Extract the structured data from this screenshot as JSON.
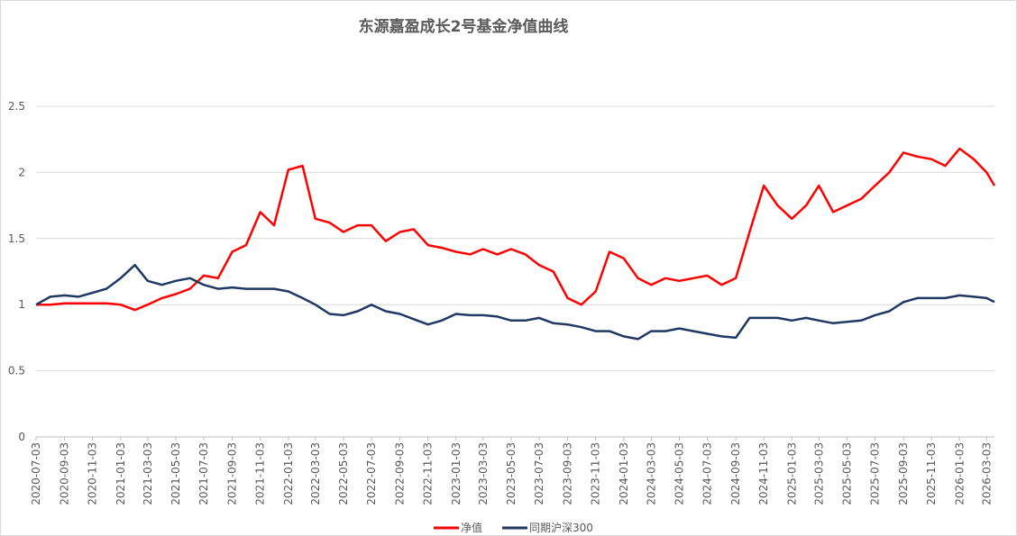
{
  "chart_data": {
    "type": "line",
    "title": "东源嘉盈成长2号基金净值曲线",
    "ylim": [
      0,
      2.5
    ],
    "y_ticks": [
      "0",
      "0.5",
      "1",
      "1.5",
      "2",
      "2.5"
    ],
    "x_tick_labels": [
      "2020-07-03",
      "2020-09-03",
      "2020-11-03",
      "2021-01-03",
      "2021-03-03",
      "2021-05-03",
      "2021-07-03",
      "2021-09-03",
      "2021-11-03",
      "2022-01-03",
      "2022-03-03",
      "2022-05-03",
      "2022-07-03",
      "2022-09-03",
      "2022-11-03",
      "2023-01-03",
      "2023-03-03",
      "2023-05-03",
      "2023-07-03",
      "2023-09-03",
      "2023-11-03",
      "2024-01-03",
      "2024-03-03",
      "2024-05-03",
      "2024-07-03",
      "2024-09-03",
      "2024-11-03",
      "2025-01-03",
      "2025-03-03",
      "2025-05-03",
      "2025-07-03",
      "2025-09-03",
      "2025-11-03",
      "2026-01-03",
      "2026-03-03"
    ],
    "grid": true,
    "legend_position": "bottom",
    "x": [
      "2020-07-03",
      "2020-08-03",
      "2020-09-03",
      "2020-10-03",
      "2020-11-03",
      "2020-12-03",
      "2021-01-03",
      "2021-02-03",
      "2021-03-03",
      "2021-04-03",
      "2021-05-03",
      "2021-06-03",
      "2021-07-03",
      "2021-08-03",
      "2021-09-03",
      "2021-10-03",
      "2021-11-03",
      "2021-12-03",
      "2022-01-03",
      "2022-02-03",
      "2022-03-03",
      "2022-04-03",
      "2022-05-03",
      "2022-06-03",
      "2022-07-03",
      "2022-08-03",
      "2022-09-03",
      "2022-10-03",
      "2022-11-03",
      "2022-12-03",
      "2023-01-03",
      "2023-02-03",
      "2023-03-03",
      "2023-04-03",
      "2023-05-03",
      "2023-06-03",
      "2023-07-03",
      "2023-08-03",
      "2023-09-03",
      "2023-10-03",
      "2023-11-03",
      "2023-12-03",
      "2024-01-03",
      "2024-02-03",
      "2024-03-03",
      "2024-04-03",
      "2024-05-03",
      "2024-06-03",
      "2024-07-03",
      "2024-08-03",
      "2024-09-03",
      "2024-10-03",
      "2024-11-03",
      "2024-12-03",
      "2025-01-03",
      "2025-02-03",
      "2025-03-03",
      "2025-04-03",
      "2025-05-03",
      "2025-06-03",
      "2025-07-03",
      "2025-08-03",
      "2025-09-03",
      "2025-10-03",
      "2025-11-03",
      "2025-12-03",
      "2026-01-03",
      "2026-02-03",
      "2026-03-03",
      "2026-03-20"
    ],
    "series": [
      {
        "name": "净值",
        "color": "#ff0000",
        "values": [
          1.0,
          1.0,
          1.01,
          1.01,
          1.01,
          1.01,
          1.0,
          0.96,
          1.0,
          1.05,
          1.08,
          1.12,
          1.22,
          1.2,
          1.4,
          1.45,
          1.7,
          1.6,
          2.02,
          2.05,
          1.65,
          1.62,
          1.55,
          1.6,
          1.6,
          1.48,
          1.55,
          1.57,
          1.45,
          1.43,
          1.4,
          1.38,
          1.42,
          1.38,
          1.42,
          1.38,
          1.3,
          1.25,
          1.05,
          1.0,
          1.1,
          1.4,
          1.35,
          1.2,
          1.15,
          1.2,
          1.18,
          1.2,
          1.22,
          1.15,
          1.2,
          1.55,
          1.9,
          1.75,
          1.65,
          1.75,
          1.9,
          1.7,
          1.75,
          1.8,
          1.9,
          2.0,
          2.15,
          2.12,
          2.1,
          2.05,
          2.18,
          2.1,
          2.0,
          1.9
        ]
      },
      {
        "name": "同期沪深300",
        "color": "#1f3864",
        "values": [
          1.0,
          1.06,
          1.07,
          1.06,
          1.09,
          1.12,
          1.2,
          1.3,
          1.18,
          1.15,
          1.18,
          1.2,
          1.15,
          1.12,
          1.13,
          1.12,
          1.12,
          1.12,
          1.1,
          1.05,
          1.0,
          0.93,
          0.92,
          0.95,
          1.0,
          0.95,
          0.93,
          0.89,
          0.85,
          0.88,
          0.93,
          0.92,
          0.92,
          0.91,
          0.88,
          0.88,
          0.9,
          0.86,
          0.85,
          0.83,
          0.8,
          0.8,
          0.76,
          0.74,
          0.8,
          0.8,
          0.82,
          0.8,
          0.78,
          0.76,
          0.75,
          0.9,
          0.9,
          0.9,
          0.88,
          0.9,
          0.88,
          0.86,
          0.87,
          0.88,
          0.92,
          0.95,
          1.02,
          1.05,
          1.05,
          1.05,
          1.07,
          1.06,
          1.05,
          1.02
        ]
      }
    ]
  }
}
